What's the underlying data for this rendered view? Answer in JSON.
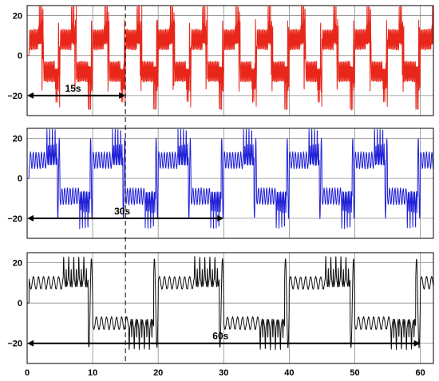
{
  "chart_data": [
    {
      "type": "line",
      "panel": "top",
      "series": [
        {
          "color": "#e8261a"
        }
      ],
      "ylim": [
        -30,
        25
      ],
      "xlim": [
        0,
        62
      ],
      "yticks": [
        -20,
        0,
        20
      ],
      "ytick_labels": [
        "−20",
        "0",
        "20"
      ],
      "grid": true,
      "style": "fast-oscillation-bursts",
      "period_s": 15,
      "annotation": {
        "label": "15s",
        "x_start": 0,
        "x_end": 15,
        "y": -20
      }
    },
    {
      "type": "line",
      "panel": "middle",
      "series": [
        {
          "color": "#2020d8"
        }
      ],
      "ylim": [
        -30,
        25
      ],
      "xlim": [
        0,
        62
      ],
      "yticks": [
        -20,
        0,
        20
      ],
      "ytick_labels": [
        "−20",
        "0",
        "20"
      ],
      "grid": true,
      "style": "medium-oscillation-bursts",
      "period_s": 30,
      "annotation": {
        "label": "30s",
        "x_start": 0,
        "x_end": 30,
        "y": -20
      }
    },
    {
      "type": "line",
      "panel": "bottom",
      "series": [
        {
          "color": "#111111"
        }
      ],
      "ylim": [
        -30,
        25
      ],
      "xlim": [
        0,
        62
      ],
      "yticks": [
        -20,
        0,
        20
      ],
      "ytick_labels": [
        "−20",
        "0",
        "20"
      ],
      "xticks": [
        0,
        10,
        20,
        30,
        40,
        50,
        60
      ],
      "xtick_labels": [
        "0",
        "10",
        "20",
        "30",
        "40",
        "50",
        "60"
      ],
      "grid": true,
      "style": "slow-oscillation-bursts",
      "period_s": 60,
      "annotation": {
        "label": "60s",
        "x_start": 0,
        "x_end": 60,
        "y": -20
      }
    }
  ],
  "dashed_marker_x": 15
}
